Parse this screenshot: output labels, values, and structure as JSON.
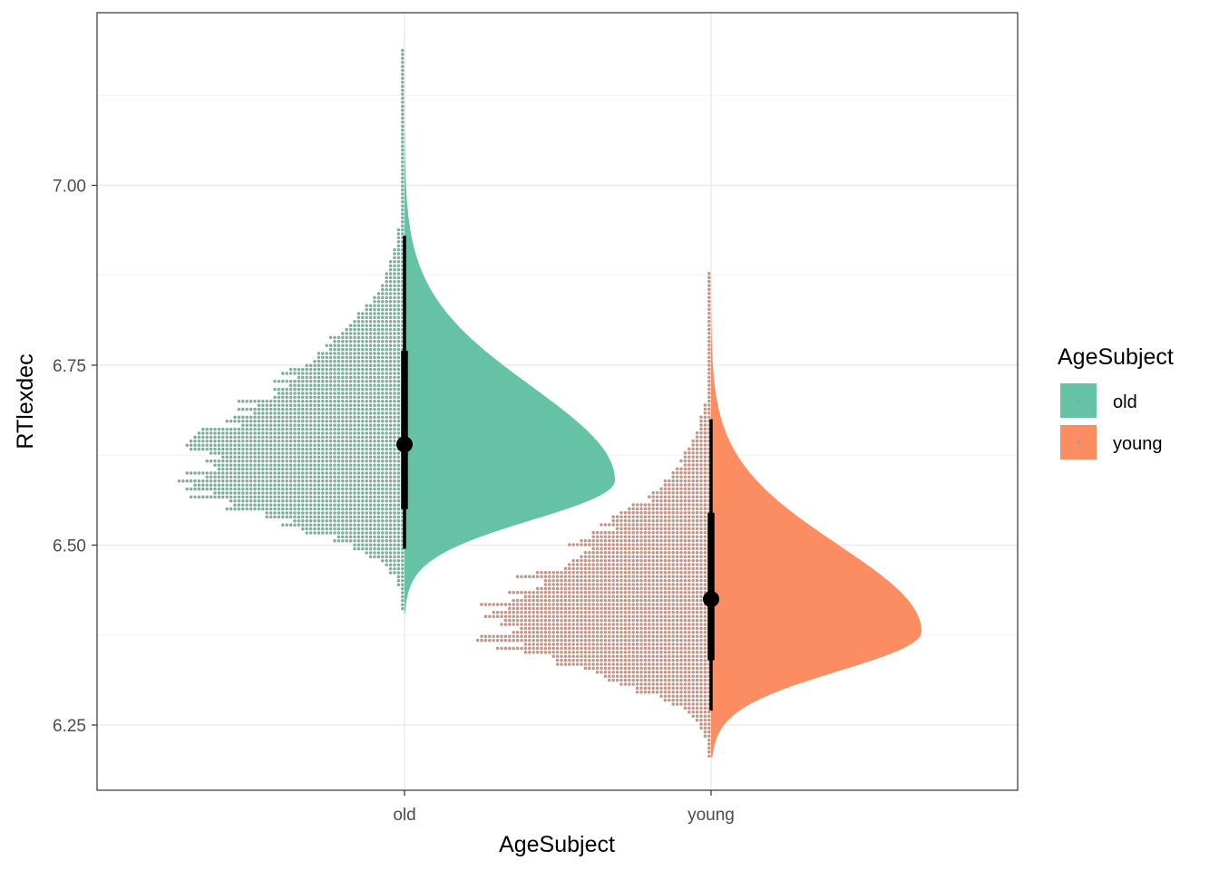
{
  "chart_data": {
    "type": "raincloud",
    "xlabel": "AgeSubject",
    "ylabel": "RTlexdec",
    "ylim": [
      6.17,
      7.22
    ],
    "yticks": [
      6.25,
      6.5,
      6.75,
      7.0
    ],
    "ytick_labels": [
      "6.25",
      "6.50",
      "6.75",
      "7.00"
    ],
    "categories": [
      "old",
      "young"
    ],
    "grid": true,
    "legend": {
      "title": "AgeSubject",
      "position": "right",
      "entries": [
        "old",
        "young"
      ]
    },
    "series": [
      {
        "name": "old",
        "color": "#66c2a5",
        "dot_color": "#7fae9c",
        "median": 6.64,
        "interval_66": [
          6.55,
          6.77
        ],
        "interval_95": [
          6.495,
          6.93
        ],
        "range": [
          6.405,
          7.19
        ],
        "density_peak_y": 6.59,
        "density_sd_lower": 0.055,
        "density_sd_upper": 0.13
      },
      {
        "name": "young",
        "color": "#fc8d62",
        "dot_color": "#c49486",
        "median": 6.425,
        "interval_66": [
          6.34,
          6.545
        ],
        "interval_95": [
          6.27,
          6.675
        ],
        "range": [
          6.205,
          6.88
        ],
        "density_peak_y": 6.38,
        "density_sd_lower": 0.055,
        "density_sd_upper": 0.12
      }
    ]
  }
}
